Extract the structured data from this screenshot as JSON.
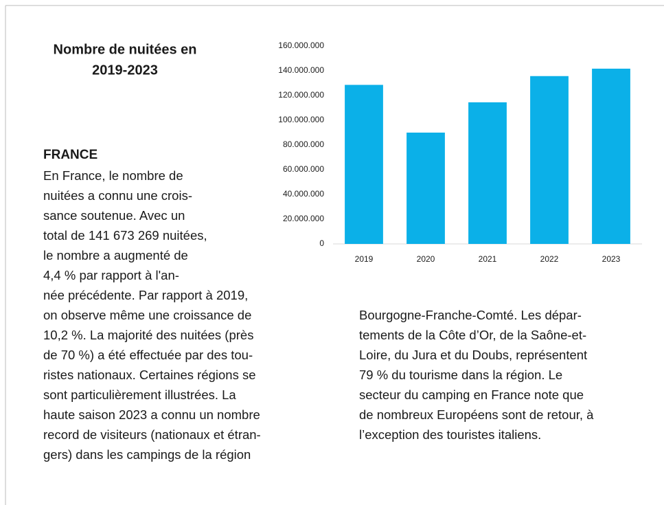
{
  "heading": {
    "lines": [
      "Nombre de nuitées en",
      "2019-2023"
    ]
  },
  "section": {
    "title": "FRANCE",
    "left_lines": [
      "En France, le nombre de",
      "nuitées a connu une crois-",
      "sance soutenue. Avec un",
      "total de 141 673 269 nuitées,",
      "le nombre a augmenté de",
      "4,4 % par rapport à l'an-",
      "née précédente. Par rapport à 2019,",
      "on observe même une croissance de",
      "10,2 %. La majorité des nuitées (près",
      "de 70 %) a été effectuée par des tou-",
      "ristes nationaux. Certaines régions se",
      "sont particulièrement illustrées. La",
      "haute saison 2023 a connu un nombre",
      "record de visiteurs (nationaux et étran-",
      "gers) dans les campings de la région"
    ],
    "right_lines": [
      "Bourgogne-Franche-Comté. Les dépar-",
      "tements de la Côte d’Or, de la Saône-et-",
      "Loire, du Jura et du Doubs, représentent",
      "79 % du tourisme dans la région. Le",
      "secteur du camping en France note que",
      "de nombreux Européens sont de retour, à",
      "l’exception des touristes italiens."
    ]
  },
  "chart_data": {
    "type": "bar",
    "categories": [
      "2019",
      "2020",
      "2021",
      "2022",
      "2023"
    ],
    "values": [
      128600000,
      90000000,
      114500000,
      135700000,
      141700000
    ],
    "color": "#0bb0e8",
    "ylim": [
      0,
      160000000
    ],
    "yticks": [
      0,
      {
        "value": 20000000,
        "label": "20.000.000"
      },
      {
        "value": 40000000,
        "label": "40.000.000"
      },
      {
        "value": 60000000,
        "label": "60.000.000"
      },
      {
        "value": 80000000,
        "label": "80.000.000"
      },
      {
        "value": 100000000,
        "label": "100.000.000"
      },
      {
        "value": 120000000,
        "label": "120.000.000"
      },
      {
        "value": 140000000,
        "label": "140.000.000"
      },
      {
        "value": 160000000,
        "label": "160.000.000"
      }
    ],
    "grid": false
  }
}
